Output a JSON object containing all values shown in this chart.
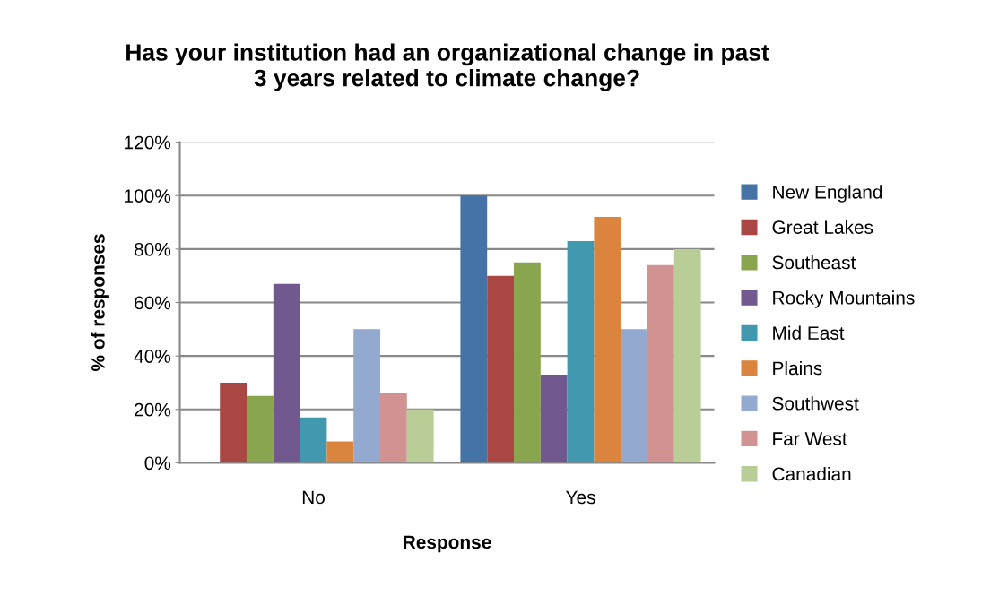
{
  "chart_data": {
    "type": "bar",
    "title": "Has your institution had an organizational change in past\n3 years related to climate change?",
    "xlabel": "Response",
    "ylabel": "% of responses",
    "categories": [
      "No",
      "Yes"
    ],
    "series": [
      {
        "name": "New England",
        "color": "#4572a7",
        "values": [
          0,
          100
        ]
      },
      {
        "name": "Great Lakes",
        "color": "#aa4643",
        "values": [
          30,
          70
        ]
      },
      {
        "name": "Southeast",
        "color": "#89a54e",
        "values": [
          25,
          75
        ]
      },
      {
        "name": "Rocky Mountains",
        "color": "#71588f",
        "values": [
          67,
          33
        ]
      },
      {
        "name": "Mid East",
        "color": "#4198af",
        "values": [
          17,
          83
        ]
      },
      {
        "name": "Plains",
        "color": "#db843d",
        "values": [
          8,
          92
        ]
      },
      {
        "name": "Southwest",
        "color": "#93a9cf",
        "values": [
          50,
          50
        ]
      },
      {
        "name": "Far West",
        "color": "#d19392",
        "values": [
          26,
          74
        ]
      },
      {
        "name": "Canadian",
        "color": "#b9cd96",
        "values": [
          20,
          80
        ]
      }
    ],
    "ylim": [
      0,
      120
    ],
    "yticks": [
      {
        "value": 0,
        "label": "0%"
      },
      {
        "value": 20,
        "label": "20%"
      },
      {
        "value": 40,
        "label": "40%"
      },
      {
        "value": 60,
        "label": "60%"
      },
      {
        "value": 80,
        "label": "80%"
      },
      {
        "value": 100,
        "label": "100%"
      },
      {
        "value": 120,
        "label": "120%"
      }
    ],
    "grid": "y",
    "legend": "right"
  }
}
